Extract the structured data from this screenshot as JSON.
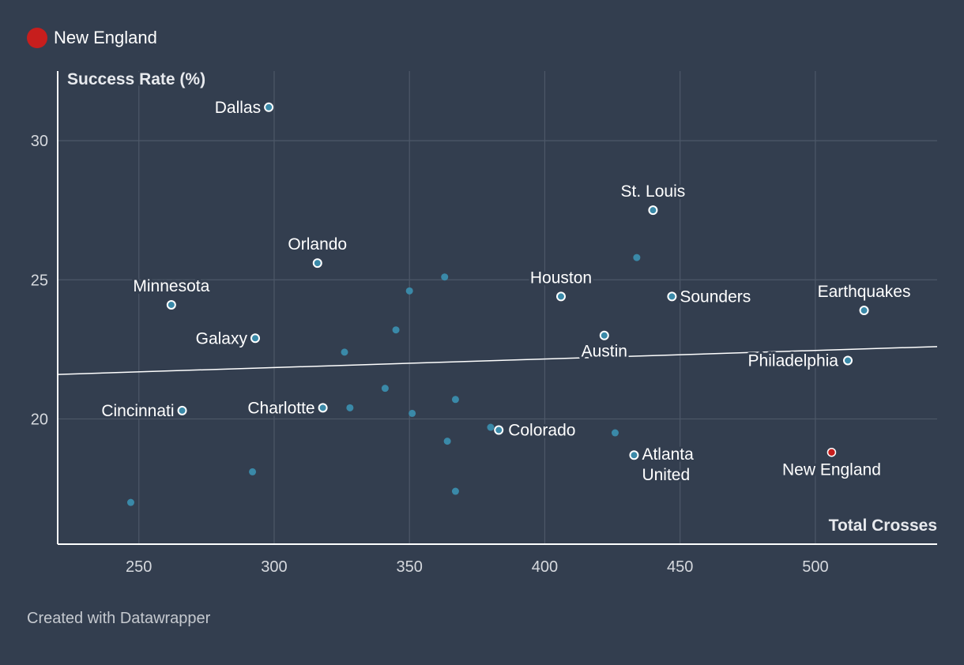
{
  "legend": {
    "label": "New England",
    "color": "#c71e1d"
  },
  "footer": {
    "text": "Created with Datawrapper"
  },
  "chart_data": {
    "type": "scatter",
    "xlabel": "Total Crosses",
    "ylabel": "Success Rate (%)",
    "xlim": [
      220,
      545
    ],
    "ylim": [
      15.5,
      32.5
    ],
    "x_ticks": [
      250,
      300,
      350,
      400,
      450,
      500
    ],
    "y_ticks": [
      20,
      25,
      30
    ],
    "grid": true,
    "trendline": {
      "x": [
        220,
        545
      ],
      "y": [
        21.6,
        22.6
      ]
    },
    "colors": {
      "labeled": "#ffffff",
      "unlabeled": "#3a89a8",
      "highlight": "#c71e1d",
      "fill": "#3a89a8"
    },
    "points": [
      {
        "name": "Dallas",
        "x": 298,
        "y": 31.2
      },
      {
        "name": "St. Louis",
        "x": 440,
        "y": 27.5
      },
      {
        "name": "Orlando",
        "x": 316,
        "y": 25.6
      },
      {
        "name": "Minnesota",
        "x": 262,
        "y": 24.1
      },
      {
        "name": "Houston",
        "x": 406,
        "y": 24.4
      },
      {
        "name": "Sounders",
        "x": 447,
        "y": 24.4
      },
      {
        "name": "Earthquakes",
        "x": 518,
        "y": 23.9
      },
      {
        "name": "Galaxy",
        "x": 293,
        "y": 22.9
      },
      {
        "name": "Austin",
        "x": 422,
        "y": 23.0
      },
      {
        "name": "Philadelphia",
        "x": 512,
        "y": 22.1
      },
      {
        "name": "Cincinnati",
        "x": 266,
        "y": 20.3
      },
      {
        "name": "Charlotte",
        "x": 318,
        "y": 20.4
      },
      {
        "name": "Colorado",
        "x": 383,
        "y": 19.6
      },
      {
        "name": "Atlanta United",
        "lines": [
          "Atlanta",
          "United"
        ],
        "x": 433,
        "y": 18.7
      },
      {
        "name": "New England",
        "x": 506,
        "y": 18.8,
        "highlight": true
      },
      {
        "x": 434,
        "y": 25.8
      },
      {
        "x": 363,
        "y": 25.1
      },
      {
        "x": 350,
        "y": 24.6
      },
      {
        "x": 345,
        "y": 23.2
      },
      {
        "x": 326,
        "y": 22.4
      },
      {
        "x": 341,
        "y": 21.1
      },
      {
        "x": 367,
        "y": 20.7
      },
      {
        "x": 328,
        "y": 20.4
      },
      {
        "x": 351,
        "y": 20.2
      },
      {
        "x": 380,
        "y": 19.7
      },
      {
        "x": 426,
        "y": 19.5
      },
      {
        "x": 364,
        "y": 19.2
      },
      {
        "x": 292,
        "y": 18.1
      },
      {
        "x": 367,
        "y": 17.4
      },
      {
        "x": 247,
        "y": 17.0
      }
    ]
  }
}
